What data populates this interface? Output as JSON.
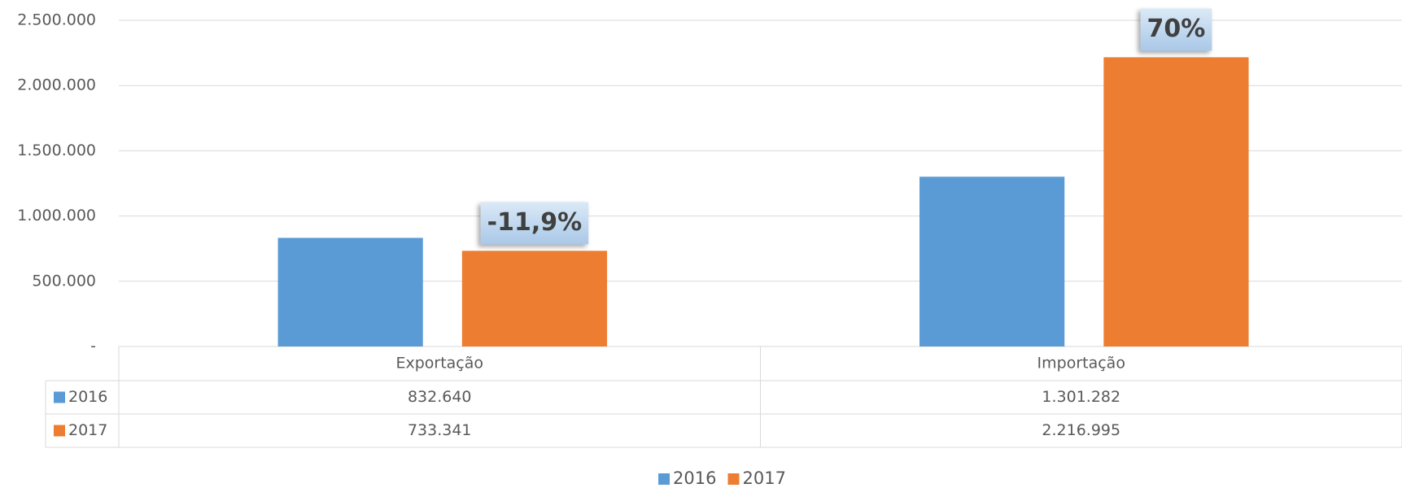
{
  "chart_data": {
    "type": "bar",
    "categories": [
      "Exportação",
      "Importação"
    ],
    "series": [
      {
        "name": "2016",
        "color": "#5b9bd5",
        "values": [
          832640,
          1301282
        ],
        "value_labels": [
          "832.640",
          "1.301.282"
        ]
      },
      {
        "name": "2017",
        "color": "#ed7d31",
        "values": [
          733341,
          2216995
        ],
        "value_labels": [
          "733.341",
          "2.216.995"
        ]
      }
    ],
    "annotations": [
      "-11,9%",
      "70%"
    ],
    "ylim": [
      0,
      2500000
    ],
    "yticks": [
      {
        "value": 0,
        "label": "-"
      },
      {
        "value": 500000,
        "label": "500.000"
      },
      {
        "value": 1000000,
        "label": "1.000.000"
      },
      {
        "value": 1500000,
        "label": "1.500.000"
      },
      {
        "value": 2000000,
        "label": "2.000.000"
      },
      {
        "value": 2500000,
        "label": "2.500.000"
      }
    ],
    "grid": true,
    "legend": "bottom"
  }
}
